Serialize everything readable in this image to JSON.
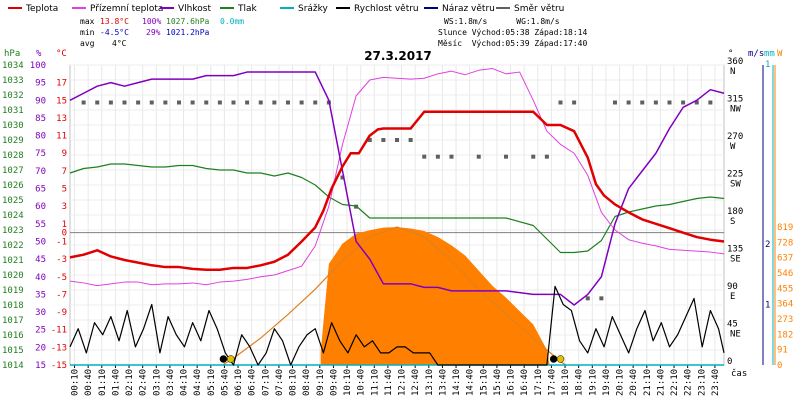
{
  "chart_data": {
    "type": "line",
    "title": "27.3.2017",
    "legend": {
      "items": [
        {
          "label": "Teplota",
          "color": "#e00000"
        },
        {
          "label": "Přízemní teplota",
          "color": "#e040e0"
        },
        {
          "label": "Vlhkost",
          "color": "#8000c0"
        },
        {
          "label": "Tlak",
          "color": "#208020"
        },
        {
          "label": "Srážky",
          "color": "#00b0c0"
        },
        {
          "label": "Rychlost větru",
          "color": "#000000"
        },
        {
          "label": "Náraz větru",
          "color": "#000080"
        },
        {
          "label": "Směr větru",
          "color": "#606060"
        }
      ]
    },
    "stats": {
      "rows": [
        {
          "label": "max",
          "temp": "13.8°C",
          "hum": "100%",
          "press": "1027.6hPa",
          "rain": "0.0mm"
        },
        {
          "label": "min",
          "temp": "-4.5°C",
          "hum": "29%",
          "press": "1021.2hPa",
          "rain": ""
        },
        {
          "label": "avg",
          "temp": "4°C",
          "hum": "",
          "press": "",
          "rain": ""
        }
      ],
      "info": [
        "WS:1.8m/s      WG:1.8m/s",
        "Slunce Východ:05:38 Západ:18:14",
        "Měsíc  Východ:05:39 Západ:17:40"
      ]
    },
    "axes": {
      "pressure": {
        "unit": "hPa",
        "ticks": [
          "1034",
          "1033",
          "1032",
          "1031",
          "1030",
          "1029",
          "1028",
          "1027",
          "1026",
          "1025",
          "1024",
          "1023",
          "1022",
          "1021",
          "1020",
          "1019",
          "1018",
          "1017",
          "1016",
          "1015",
          "1014"
        ],
        "range": [
          1014,
          1034
        ]
      },
      "humidity": {
        "unit": "%",
        "ticks": [
          "100",
          "95",
          "90",
          "85",
          "80",
          "75",
          "70",
          "65",
          "60",
          "55",
          "50",
          "45",
          "40",
          "35",
          "30",
          "25",
          "20",
          "15"
        ],
        "range": [
          15,
          100
        ]
      },
      "temperature": {
        "unit": "°C",
        "ticks": [
          "17",
          "15",
          "13",
          "11",
          "9",
          "7",
          "5",
          "3",
          "1",
          "0",
          "-1",
          "-3",
          "-5",
          "-7",
          "-9",
          "-11",
          "-13",
          "-15"
        ],
        "range": [
          -15,
          19
        ]
      },
      "direction": {
        "unit": "°",
        "ticks": [
          "360",
          "315",
          "270",
          "225",
          "180",
          "135",
          "90",
          "45",
          "0"
        ],
        "labels": [
          "N",
          "NW",
          "W",
          "SW",
          "S",
          "SE",
          "E",
          "NE",
          ""
        ],
        "range": [
          0,
          360
        ]
      },
      "wind": {
        "unit": "m/s",
        "ticks": [
          "2",
          "1"
        ],
        "range": [
          0,
          2
        ]
      },
      "rain": {
        "unit": "mm",
        "ticks": [
          "1"
        ]
      },
      "solar": {
        "unit": "W",
        "ticks": [
          "819",
          "728",
          "637",
          "546",
          "455",
          "364",
          "273",
          "182",
          "91",
          "0"
        ],
        "range": [
          0,
          819
        ]
      },
      "x": {
        "label": "čas",
        "ticks": [
          "00:10",
          "00:40",
          "01:10",
          "01:40",
          "02:10",
          "02:40",
          "03:10",
          "03:40",
          "04:10",
          "04:40",
          "05:10",
          "05:40",
          "06:10",
          "06:40",
          "07:10",
          "07:40",
          "08:10",
          "08:40",
          "09:10",
          "09:40",
          "10:10",
          "10:40",
          "11:10",
          "11:40",
          "12:10",
          "12:40",
          "13:10",
          "13:40",
          "14:10",
          "14:40",
          "15:10",
          "15:40",
          "16:10",
          "16:40",
          "17:10",
          "17:40",
          "18:10",
          "18:40",
          "19:10",
          "19:40",
          "20:10",
          "20:40",
          "21:10",
          "21:40",
          "22:10",
          "22:40",
          "23:10",
          "23:40"
        ],
        "range": [
          0,
          24
        ]
      }
    },
    "series": [
      {
        "name": "Teplota",
        "axis": "temperature",
        "color": "#e00000",
        "x": [
          0,
          0.5,
          1,
          1.5,
          2,
          2.5,
          3,
          3.5,
          4,
          4.5,
          5,
          5.5,
          6,
          6.5,
          7,
          7.5,
          8,
          8.5,
          9,
          9.3,
          9.6,
          10,
          10.3,
          10.6,
          11,
          11.3,
          11.5,
          12,
          12.5,
          13,
          13.5,
          14,
          15,
          16,
          17,
          17.5,
          18,
          18.5,
          19,
          19.3,
          19.6,
          20,
          20.5,
          21,
          21.5,
          22,
          22.5,
          23,
          23.5,
          24
        ],
        "y": [
          -2.8,
          -2.5,
          -2.0,
          -2.7,
          -3.1,
          -3.4,
          -3.7,
          -3.9,
          -3.9,
          -4.1,
          -4.2,
          -4.2,
          -4.0,
          -4.0,
          -3.7,
          -3.3,
          -2.5,
          -1.0,
          0.6,
          2.5,
          5.0,
          7.5,
          9.0,
          9.0,
          11.0,
          11.7,
          11.8,
          11.8,
          11.8,
          13.7,
          13.7,
          13.7,
          13.7,
          13.7,
          13.7,
          12.2,
          12.2,
          11.5,
          8.5,
          5.5,
          4.2,
          3.2,
          2.3,
          1.5,
          1.0,
          0.5,
          0.0,
          -0.5,
          -0.8,
          -1.0
        ]
      },
      {
        "name": "Přízemní teplota",
        "axis": "temperature",
        "color": "#e040e0",
        "x": [
          0,
          0.5,
          1,
          1.5,
          2,
          2.5,
          3,
          3.5,
          4,
          4.5,
          5,
          5.5,
          6,
          6.5,
          7,
          7.5,
          8,
          8.5,
          9,
          9.5,
          10,
          10.5,
          11,
          11.5,
          12,
          12.5,
          13,
          13.5,
          14,
          14.5,
          15,
          15.5,
          16,
          16.5,
          17,
          17.5,
          18,
          18.5,
          19,
          19.5,
          20,
          20.5,
          21,
          21.5,
          22,
          22.5,
          23,
          23.5,
          24
        ],
        "y": [
          -5.5,
          -5.7,
          -6.0,
          -5.8,
          -5.6,
          -5.6,
          -5.9,
          -5.8,
          -5.8,
          -5.7,
          -5.9,
          -5.6,
          -5.5,
          -5.3,
          -5.0,
          -4.8,
          -4.3,
          -3.8,
          -1.5,
          3.0,
          10.0,
          15.5,
          17.3,
          17.6,
          17.5,
          17.4,
          17.5,
          18.0,
          18.3,
          17.9,
          18.4,
          18.6,
          18.0,
          18.2,
          15.0,
          11.5,
          10.0,
          9.0,
          6.5,
          2.3,
          0.3,
          -0.8,
          -1.2,
          -1.5,
          -1.9,
          -2.0,
          -2.1,
          -2.2,
          -2.4
        ]
      },
      {
        "name": "Vlhkost",
        "axis": "humidity",
        "color": "#8000c0",
        "x": [
          0,
          0.5,
          1,
          1.5,
          2,
          2.5,
          3,
          3.5,
          4,
          4.5,
          5,
          5.5,
          6,
          6.5,
          7,
          7.5,
          8,
          8.5,
          9,
          9.5,
          10,
          10.5,
          11,
          11.5,
          12,
          12.5,
          13,
          13.5,
          14,
          15,
          16,
          17,
          18,
          18.5,
          19,
          19.5,
          20,
          20.5,
          21,
          21.5,
          22,
          22.5,
          23,
          23.5,
          24
        ],
        "y": [
          90,
          92,
          94,
          95,
          94,
          95,
          96,
          96,
          96,
          96,
          97,
          97,
          97,
          98,
          98,
          98,
          98,
          98,
          98,
          90,
          70,
          50,
          45,
          38,
          38,
          38,
          37,
          37,
          36,
          36,
          36,
          35,
          35,
          32,
          35,
          40,
          55,
          65,
          70,
          75,
          82,
          88,
          90,
          93,
          92
        ]
      },
      {
        "name": "Tlak",
        "axis": "pressure",
        "color": "#208020",
        "x": [
          0,
          0.5,
          1,
          1.5,
          2,
          2.5,
          3,
          3.5,
          4,
          4.5,
          5,
          5.5,
          6,
          6.5,
          7,
          7.5,
          8,
          8.5,
          9,
          9.5,
          10,
          10.5,
          11,
          11.5,
          12,
          12.5,
          13,
          14,
          15,
          16,
          17,
          18,
          18.5,
          19,
          19.5,
          20,
          20.5,
          21,
          21.5,
          22,
          22.5,
          23,
          23.5,
          24
        ],
        "y": [
          1026.8,
          1027.1,
          1027.2,
          1027.4,
          1027.4,
          1027.3,
          1027.2,
          1027.2,
          1027.3,
          1027.3,
          1027.1,
          1027.0,
          1027.0,
          1026.8,
          1026.8,
          1026.6,
          1026.8,
          1026.5,
          1026.0,
          1025.2,
          1024.7,
          1024.6,
          1023.8,
          1023.8,
          1023.8,
          1023.8,
          1023.8,
          1023.8,
          1023.8,
          1023.8,
          1023.3,
          1021.5,
          1021.5,
          1021.6,
          1022.3,
          1023.9,
          1024.2,
          1024.4,
          1024.6,
          1024.7,
          1024.9,
          1025.1,
          1025.2,
          1025.1
        ]
      },
      {
        "name": "Rychlost větru",
        "axis": "wind",
        "color": "#000000",
        "x": [
          0,
          0.3,
          0.6,
          0.9,
          1.2,
          1.5,
          1.8,
          2.1,
          2.4,
          2.7,
          3.0,
          3.3,
          3.6,
          3.9,
          4.2,
          4.5,
          4.8,
          5.1,
          5.4,
          5.7,
          6.0,
          6.3,
          6.6,
          6.9,
          7.2,
          7.5,
          7.8,
          8.1,
          8.4,
          8.7,
          9.0,
          9.3,
          9.6,
          9.9,
          10.2,
          10.5,
          10.8,
          11.1,
          11.4,
          11.7,
          12.0,
          12.3,
          12.6,
          12.9,
          13.2,
          13.5,
          17.5,
          17.8,
          18.1,
          18.4,
          18.7,
          19.0,
          19.3,
          19.6,
          19.9,
          20.2,
          20.5,
          20.8,
          21.1,
          21.4,
          21.7,
          22.0,
          22.3,
          22.6,
          22.9,
          23.2,
          23.5,
          23.8,
          24.0
        ],
        "y": [
          0.3,
          0.6,
          0.2,
          0.7,
          0.5,
          0.8,
          0.4,
          0.9,
          0.3,
          0.6,
          1.0,
          0.2,
          0.8,
          0.5,
          0.3,
          0.7,
          0.4,
          0.9,
          0.6,
          0.2,
          0.0,
          0.5,
          0.3,
          0.0,
          0.2,
          0.6,
          0.4,
          0.0,
          0.3,
          0.5,
          0.6,
          0.2,
          0.7,
          0.4,
          0.2,
          0.5,
          0.3,
          0.4,
          0.2,
          0.2,
          0.3,
          0.3,
          0.2,
          0.2,
          0.2,
          0.0,
          0.0,
          1.3,
          1.0,
          0.9,
          0.4,
          0.2,
          0.6,
          0.3,
          0.8,
          0.5,
          0.2,
          0.6,
          0.9,
          0.4,
          0.7,
          0.3,
          0.5,
          0.8,
          1.1,
          0.3,
          0.9,
          0.6,
          0.2
        ]
      },
      {
        "name": "Směr větru",
        "axis": "direction",
        "color": "#606060",
        "x": [
          0.5,
          1,
          1.5,
          2,
          2.5,
          3,
          3.5,
          4,
          4.5,
          5,
          5.5,
          6,
          6.5,
          7,
          7.5,
          8,
          8.5,
          9,
          9.5,
          10,
          10.5,
          11,
          11.5,
          12,
          12.5,
          13,
          13.5,
          14,
          15,
          16,
          17,
          17.5,
          18,
          18.5,
          19,
          19.5,
          20,
          20.5,
          21,
          21.5,
          22,
          22.5,
          23,
          23.5
        ],
        "y": [
          315,
          315,
          315,
          315,
          315,
          315,
          315,
          315,
          315,
          315,
          315,
          315,
          315,
          315,
          315,
          315,
          315,
          315,
          315,
          225,
          190,
          270,
          270,
          270,
          270,
          250,
          250,
          250,
          250,
          250,
          250,
          250,
          315,
          315,
          80,
          80,
          315,
          315,
          315,
          315,
          315,
          315,
          315,
          315
        ]
      },
      {
        "name": "Srážky",
        "axis": "rain",
        "color": "#00b0c0",
        "x": [
          0,
          24
        ],
        "y": [
          0,
          0
        ]
      },
      {
        "name": "Solar",
        "axis": "solar",
        "color": "#ff8000",
        "x": [
          9.2,
          9.5,
          10,
          10.5,
          11,
          11.5,
          12,
          12.5,
          13,
          13.5,
          14,
          14.5,
          15,
          15.5,
          16,
          16.5,
          17,
          17.5,
          17.6
        ],
        "y": [
          80,
          600,
          720,
          780,
          800,
          815,
          818,
          810,
          795,
          760,
          710,
          650,
          560,
          470,
          400,
          320,
          240,
          90,
          0
        ]
      },
      {
        "name": "Solar max",
        "axis": "solar",
        "color": "#e08020",
        "x": [
          5.6,
          6,
          7,
          8,
          9,
          10,
          11,
          12,
          13,
          14,
          15,
          16,
          17,
          18,
          18.2
        ],
        "y": [
          0,
          40,
          160,
          300,
          450,
          620,
          760,
          819,
          760,
          620,
          450,
          300,
          160,
          20,
          0
        ]
      }
    ]
  }
}
